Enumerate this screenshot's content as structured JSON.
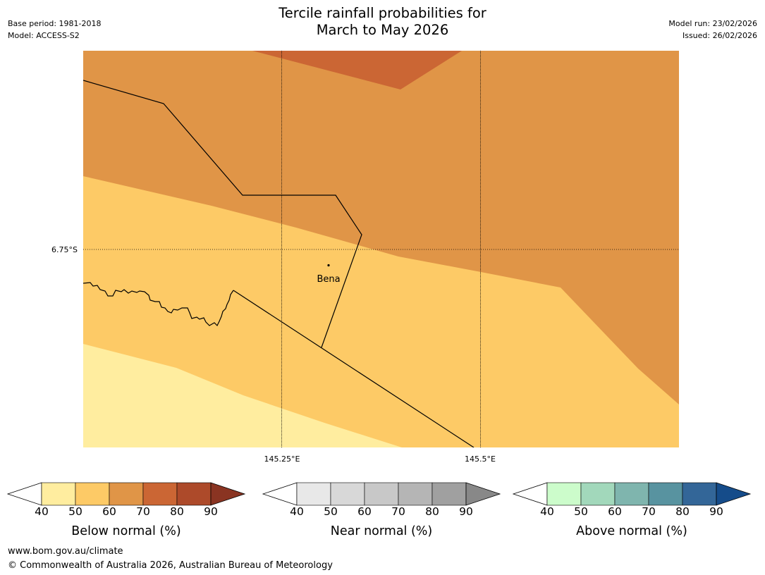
{
  "title_line1": "Tercile rainfall probabilities for",
  "title_line2": "March to May 2026",
  "base_period": "Base period: 1981-2018",
  "model": "Model: ACCESS-S2",
  "model_run": "Model run: 23/02/2026",
  "issued": "Issued: 26/02/2026",
  "map": {
    "lat_label": "6.75°S",
    "lon_labels": [
      "145.25°E",
      "145.5°E"
    ],
    "place": "Bena"
  },
  "colorbars": [
    {
      "name": "below",
      "title": "Below normal (%)",
      "ticks": [
        "40",
        "50",
        "60",
        "70",
        "80",
        "90"
      ],
      "colors": [
        "#ffffff",
        "#ffed9f",
        "#fdca66",
        "#e09547",
        "#cb6634",
        "#ad4a2a",
        "#8a3422"
      ]
    },
    {
      "name": "near",
      "title": "Near normal (%)",
      "ticks": [
        "40",
        "50",
        "60",
        "70",
        "80",
        "90"
      ],
      "colors": [
        "#ffffff",
        "#e8e8e8",
        "#d8d8d8",
        "#c8c8c8",
        "#b5b5b5",
        "#a0a0a0",
        "#888888"
      ]
    },
    {
      "name": "above",
      "title": "Above normal (%)",
      "ticks": [
        "40",
        "50",
        "60",
        "70",
        "80",
        "90"
      ],
      "colors": [
        "#ffffff",
        "#ccfccb",
        "#a2d8bb",
        "#7fb5ae",
        "#5893a0",
        "#336698",
        "#154c8a"
      ]
    }
  ],
  "footer_url": "www.bom.gov.au/climate",
  "footer_copyright": "© Commonwealth of Australia 2026, Australian Bureau of Meteorology"
}
